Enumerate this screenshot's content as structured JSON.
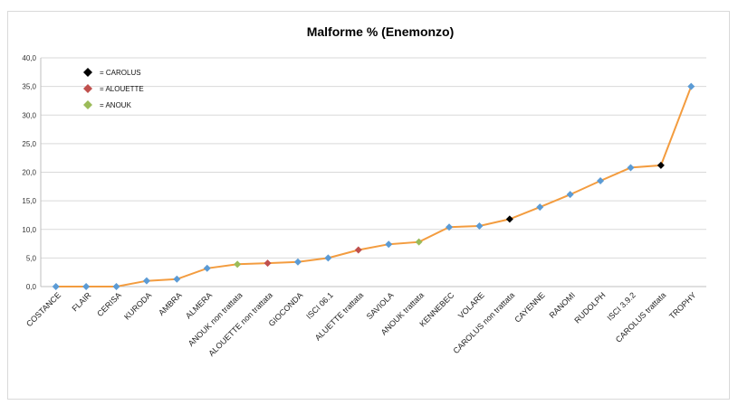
{
  "chart_data": {
    "type": "line",
    "title": "Malforme %   (Enemonzo)",
    "xlabel": "",
    "ylabel": "",
    "ylim": [
      0,
      40
    ],
    "yticks": [
      "0,0",
      "5,0",
      "10,0",
      "15,0",
      "20,0",
      "25,0",
      "30,0",
      "35,0",
      "40,0"
    ],
    "grid": true,
    "legend_position": "top-left",
    "line_color": "#f39c3f",
    "default_marker_color": "#5b9bd5",
    "legend": [
      {
        "label": "= CAROLUS",
        "color": "#000000"
      },
      {
        "label": "= ALOUETTE",
        "color": "#c0504d"
      },
      {
        "label": "= ANOUK",
        "color": "#9bbb59"
      }
    ],
    "categories": [
      "COSTANCE",
      "FLAIR",
      "CERISA",
      "KURODA",
      "AMBRA",
      "ALMERA",
      "ANOUK non trattata",
      "ALOUETTE non trattata",
      "GIOCONDA",
      "ISCI 06.1",
      "ALUETTE trattata",
      "SAVIOLA",
      "ANOUK trattata",
      "KENNEBEC",
      "VOLARE",
      "CAROLUS non trattata",
      "CAYENNE",
      "RANOMI",
      "RUDOLPH",
      "ISCI 3.9.2",
      "CAROLUS trattata",
      "TROPHY"
    ],
    "values": [
      0,
      0,
      0,
      1,
      1.3,
      3.2,
      3.9,
      4.1,
      4.3,
      5,
      6.4,
      7.4,
      7.8,
      10.4,
      10.6,
      11.8,
      13.9,
      16.1,
      18.5,
      20.8,
      21.2,
      35
    ],
    "point_colors": [
      "#5b9bd5",
      "#5b9bd5",
      "#5b9bd5",
      "#5b9bd5",
      "#5b9bd5",
      "#5b9bd5",
      "#9bbb59",
      "#c0504d",
      "#5b9bd5",
      "#5b9bd5",
      "#c0504d",
      "#5b9bd5",
      "#9bbb59",
      "#5b9bd5",
      "#5b9bd5",
      "#000000",
      "#5b9bd5",
      "#5b9bd5",
      "#5b9bd5",
      "#5b9bd5",
      "#000000",
      "#5b9bd5"
    ]
  }
}
